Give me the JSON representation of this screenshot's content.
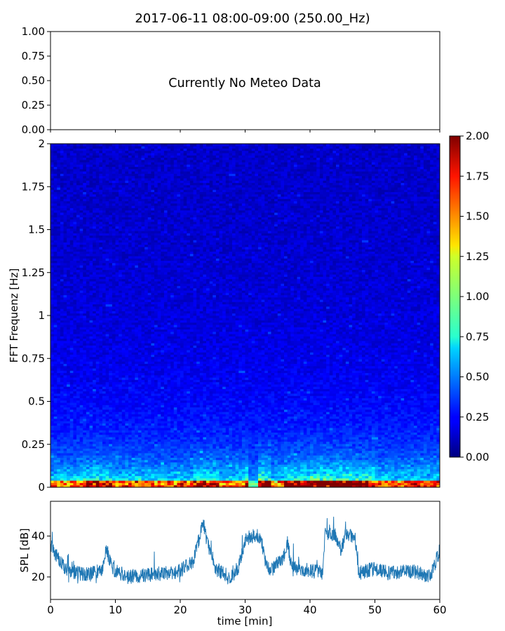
{
  "title": "2017-06-11 08:00-09:00 (250.00_Hz)",
  "chart_data": [
    {
      "type": "line",
      "panel": "meteo",
      "annotation": "Currently No Meteo Data",
      "ylim": [
        0,
        1
      ],
      "yticks": [
        "0.00",
        "0.25",
        "0.50",
        "0.75",
        "1.00"
      ],
      "xlim": [
        0,
        60
      ],
      "grid": false
    },
    {
      "type": "heatmap",
      "panel": "spectrogram",
      "ylabel": "FFT Frequenz [Hz]",
      "ylim": [
        0,
        2
      ],
      "yticks": [
        "0",
        "0.25",
        "0.5",
        "0.75",
        "1",
        "1.25",
        "1.5",
        "1.75",
        "2"
      ],
      "xlim": [
        0,
        60
      ],
      "colormap": "jet",
      "colorbar": {
        "range": [
          0,
          2
        ],
        "ticks": [
          "0.00",
          "0.25",
          "0.50",
          "0.75",
          "1.00",
          "1.25",
          "1.50",
          "1.75",
          "2.00"
        ]
      },
      "description": "Mostly low (blue) values across all frequencies; high values (yellow to dark red) concentrated below about 0.1 Hz, strongest between 30 and 50 min."
    },
    {
      "type": "line",
      "panel": "spl",
      "ylabel": "SPL [dB]",
      "xlabel": "time [min]",
      "xlim": [
        0,
        60
      ],
      "xticks": [
        "0",
        "10",
        "20",
        "30",
        "40",
        "50",
        "60"
      ],
      "ylim": [
        9,
        57
      ],
      "yticks": [
        "20",
        "40"
      ],
      "color": "#1f77b4",
      "x": [
        0,
        2,
        4,
        6,
        8,
        8.6,
        9.5,
        12,
        15,
        18,
        20,
        22,
        23,
        23.5,
        24.5,
        25.5,
        27,
        28,
        29,
        30,
        31,
        32,
        32.5,
        33,
        34,
        35,
        36,
        36.5,
        37,
        38,
        40,
        42,
        42.3,
        43,
        44,
        44.8,
        45.5,
        46.5,
        47,
        47.5,
        50,
        52,
        55,
        57,
        58.5,
        60
      ],
      "y": [
        35,
        25,
        22,
        21,
        24,
        34,
        24,
        20,
        21,
        22,
        23,
        28,
        40,
        46,
        33,
        24,
        21,
        20,
        25,
        38,
        40,
        40,
        39,
        28,
        23,
        27,
        30,
        38,
        28,
        24,
        23,
        22,
        40,
        42,
        40,
        33,
        42,
        40,
        38,
        22,
        24,
        22,
        23,
        22,
        20,
        33
      ]
    }
  ]
}
